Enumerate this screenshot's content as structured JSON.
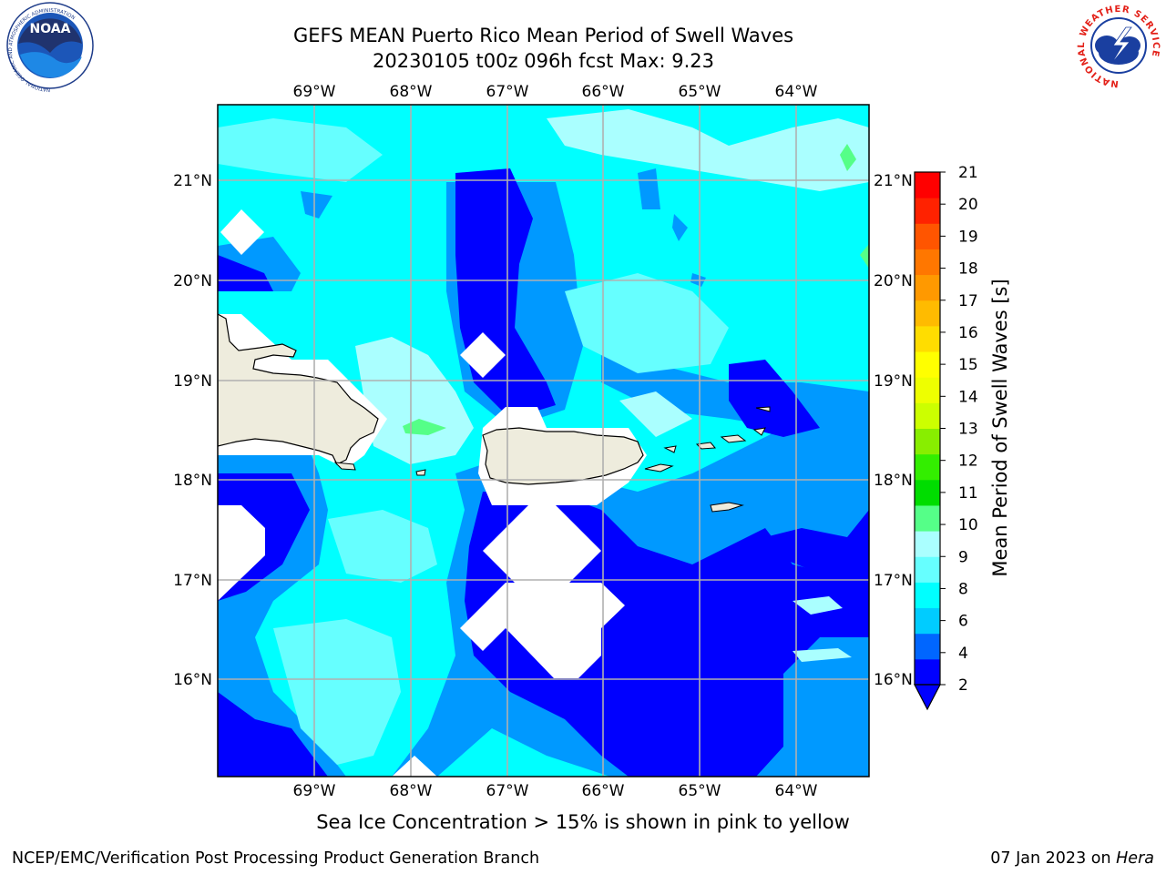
{
  "title": {
    "line1": "GEFS MEAN Puerto Rico Mean Period of Swell Waves",
    "line2": "20230105 t00z 096h fcst   Max: 9.23"
  },
  "map": {
    "lon_labels": [
      "69°W",
      "68°W",
      "67°W",
      "66°W",
      "65°W",
      "64°W"
    ],
    "lat_labels": [
      "21°N",
      "20°N",
      "19°N",
      "18°N",
      "17°N",
      "16°N"
    ]
  },
  "colorbar": {
    "label": "Mean Period of Swell Waves [s]",
    "ticks": [
      "21",
      "20",
      "19",
      "18",
      "17",
      "16",
      "15",
      "14",
      "13",
      "12",
      "11",
      "10",
      "9",
      "8",
      "6",
      "4",
      "2"
    ],
    "colors": [
      "#0000ff",
      "#0066ff",
      "#00ccff",
      "#00ffff",
      "#66ffff",
      "#aaffff",
      "#55ff88",
      "#00dd00",
      "#33ee00",
      "#88ee00",
      "#ccff00",
      "#eeff00",
      "#ffff00",
      "#ffdd00",
      "#ffbb00",
      "#ff9900",
      "#ff7700",
      "#ff5500",
      "#ff2200",
      "#ff0000"
    ]
  },
  "caption": "Sea Ice Concentration > 15% is shown in pink to yellow",
  "footer": {
    "left": "NCEP/EMC/Verification Post Processing Product Generation Branch",
    "right_prefix": "07 Jan 2023 on ",
    "right_host": "Hera"
  },
  "logos": {
    "noaa_text": "NOAA",
    "noaa_ring": "NATIONAL OCEANIC AND ATMOSPHERIC ADMINISTRATION",
    "noaa_ring_bottom": "U.S. DEPARTMENT OF COMMERCE",
    "nws_ring": "NATIONAL WEATHER SERVICE"
  }
}
